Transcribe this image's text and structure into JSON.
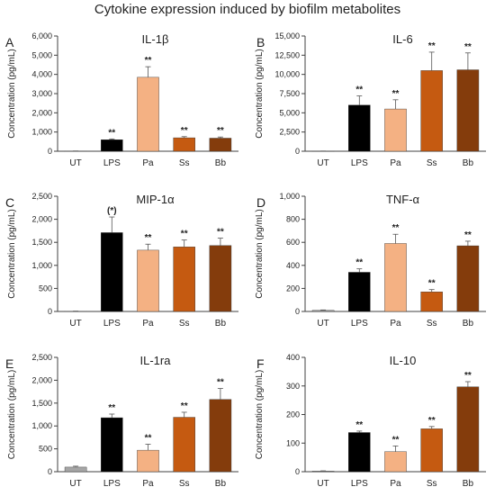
{
  "title": "Cytokine expression induced by biofilm metabolites",
  "colors": {
    "UT": "#a6a6a6",
    "LPS": "#000000",
    "Pa": "#f4b183",
    "Ss": "#c55a11",
    "Bb": "#843c0c",
    "axis": "#404040"
  },
  "chart_data": [
    {
      "type": "bar",
      "panel": "A",
      "title": "IL-1β",
      "ylabel": "Concentration (pg/mL)",
      "categories": [
        "UT",
        "LPS",
        "Pa",
        "Ss",
        "Bb"
      ],
      "values": [
        10,
        600,
        3850,
        700,
        680
      ],
      "errors": [
        5,
        40,
        550,
        60,
        60
      ],
      "significance": [
        "",
        "**",
        "**",
        "**",
        "**"
      ],
      "ylim": [
        0,
        6000
      ],
      "yticks": [
        0,
        1000,
        2000,
        3000,
        4000,
        5000,
        6000
      ],
      "ytick_labels": [
        "0",
        "1,000",
        "2,000",
        "3,000",
        "4,000",
        "5,000",
        "6,000"
      ]
    },
    {
      "type": "bar",
      "panel": "B",
      "title": "IL-6",
      "ylabel": "Concentration (pg/mL)",
      "categories": [
        "UT",
        "LPS",
        "Pa",
        "Ss",
        "Bb"
      ],
      "values": [
        20,
        6000,
        5500,
        10500,
        10600
      ],
      "errors": [
        10,
        1200,
        1200,
        2400,
        2200
      ],
      "significance": [
        "",
        "**",
        "**",
        "**",
        "**"
      ],
      "ylim": [
        0,
        15000
      ],
      "yticks": [
        0,
        2500,
        5000,
        7500,
        10000,
        12500,
        15000
      ],
      "ytick_labels": [
        "0",
        "2,500",
        "5,000",
        "7,500",
        "10,000",
        "12,500",
        "15,000"
      ]
    },
    {
      "type": "bar",
      "panel": "C",
      "title": "MIP-1α",
      "ylabel": "Concentration (pg/mL)",
      "categories": [
        "UT",
        "LPS",
        "Pa",
        "Ss",
        "Bb"
      ],
      "values": [
        5,
        1710,
        1330,
        1400,
        1430
      ],
      "errors": [
        3,
        340,
        130,
        150,
        160
      ],
      "significance": [
        "",
        "(*)",
        "**",
        "**",
        "**"
      ],
      "ylim": [
        0,
        2500
      ],
      "yticks": [
        0,
        500,
        1000,
        1500,
        2000,
        2500
      ],
      "ytick_labels": [
        "0",
        "500",
        "1,000",
        "1,500",
        "2,000",
        "2,500"
      ]
    },
    {
      "type": "bar",
      "panel": "D",
      "title": "TNF-α",
      "ylabel": "Concentration (pg/mL)",
      "categories": [
        "UT",
        "LPS",
        "Pa",
        "Ss",
        "Bb"
      ],
      "values": [
        10,
        340,
        590,
        170,
        570
      ],
      "errors": [
        3,
        30,
        80,
        20,
        40
      ],
      "significance": [
        "",
        "**",
        "**",
        "**",
        "**"
      ],
      "ylim": [
        0,
        1000
      ],
      "yticks": [
        0,
        200,
        400,
        600,
        800,
        1000
      ],
      "ytick_labels": [
        "0",
        "200",
        "400",
        "600",
        "800",
        "1,000"
      ]
    },
    {
      "type": "bar",
      "panel": "E",
      "title": "IL-1ra",
      "ylabel": "Concentration (pg/mL)",
      "categories": [
        "UT",
        "LPS",
        "Pa",
        "Ss",
        "Bb"
      ],
      "values": [
        100,
        1180,
        470,
        1190,
        1580
      ],
      "errors": [
        20,
        80,
        130,
        110,
        240
      ],
      "significance": [
        "",
        "**",
        "**",
        "**",
        "**"
      ],
      "ylim": [
        0,
        2500
      ],
      "yticks": [
        0,
        500,
        1000,
        1500,
        2000,
        2500
      ],
      "ytick_labels": [
        "0",
        "500",
        "1,000",
        "1,500",
        "2,000",
        "2,500"
      ]
    },
    {
      "type": "bar",
      "panel": "F",
      "title": "IL-10",
      "ylabel": "Concentration (pg/mL)",
      "categories": [
        "UT",
        "LPS",
        "Pa",
        "Ss",
        "Bb"
      ],
      "values": [
        2,
        137,
        70,
        150,
        297
      ],
      "errors": [
        1,
        5,
        20,
        8,
        18
      ],
      "significance": [
        "",
        "**",
        "**",
        "**",
        "**"
      ],
      "ylim": [
        0,
        400
      ],
      "yticks": [
        0,
        100,
        200,
        300,
        400
      ],
      "ytick_labels": [
        "0",
        "100",
        "200",
        "300",
        "400"
      ]
    }
  ]
}
